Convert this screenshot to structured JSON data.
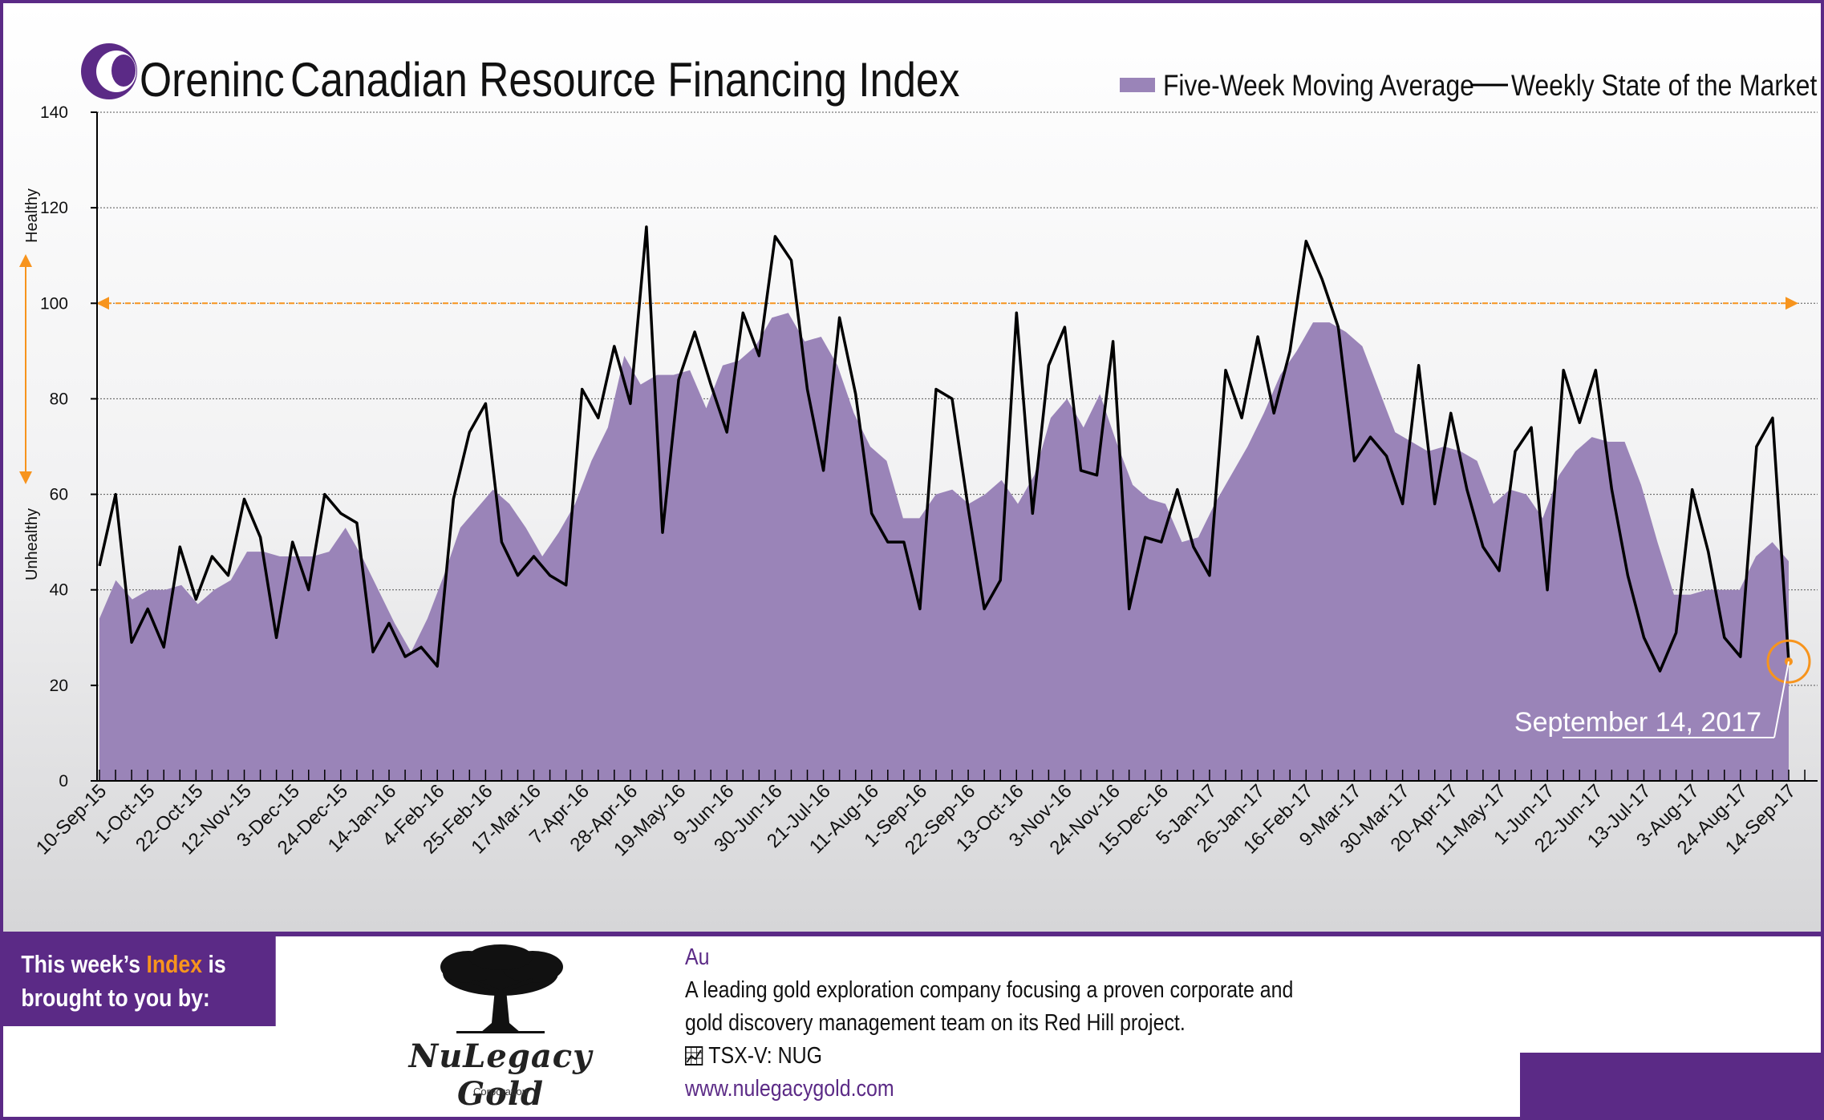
{
  "header": {
    "brand": "Oreninc",
    "title": "Canadian Resource Financing Index",
    "legend": {
      "area_label": "Five-Week Moving Average",
      "line_label": "Weekly State of the Market",
      "placement": "top-right"
    },
    "side_labels": {
      "top": "Healthy",
      "bottom": "Unhealthy"
    }
  },
  "colors": {
    "brand": "#5b2a86",
    "area_fill": "#9a84b8",
    "line": "#000000",
    "threshold": "#f7941d",
    "highlight": "#f7941d"
  },
  "chart_data": {
    "type": "line",
    "title": "Canadian Resource Financing Index",
    "xlabel": "",
    "ylabel": "",
    "ylim": [
      0,
      140
    ],
    "yticks": [
      0,
      20,
      40,
      60,
      80,
      100,
      120,
      140
    ],
    "grid": true,
    "legend_position": "top-right",
    "x_tick_labels": [
      "10-Sep-15",
      "1-Oct-15",
      "22-Oct-15",
      "12-Nov-15",
      "3-Dec-15",
      "24-Dec-15",
      "14-Jan-16",
      "4-Feb-16",
      "25-Feb-16",
      "17-Mar-16",
      "7-Apr-16",
      "28-Apr-16",
      "19-May-16",
      "9-Jun-16",
      "30-Jun-16",
      "21-Jul-16",
      "11-Aug-16",
      "1-Sep-16",
      "22-Sep-16",
      "13-Oct-16",
      "3-Nov-16",
      "24-Nov-16",
      "15-Dec-16",
      "5-Jan-17",
      "26-Jan-17",
      "16-Feb-17",
      "9-Mar-17",
      "30-Mar-17",
      "20-Apr-17",
      "11-May-17",
      "1-Jun-17",
      "22-Jun-17",
      "13-Jul-17",
      "3-Aug-17",
      "24-Aug-17",
      "14-Sep-17"
    ],
    "threshold": 100,
    "series": [
      {
        "name": "Five-Week Moving Average",
        "kind": "area",
        "values": [
          34,
          42,
          38,
          40,
          40,
          41,
          37,
          40,
          42,
          48,
          48,
          47,
          47,
          47,
          48,
          53,
          47,
          40,
          33,
          27,
          34,
          43,
          53,
          57,
          61,
          58,
          53,
          47,
          52,
          58,
          67,
          74,
          89,
          83,
          85,
          85,
          86,
          78,
          87,
          88,
          91,
          97,
          98,
          92,
          93,
          87,
          77,
          70,
          67,
          55,
          55,
          60,
          61,
          58,
          60,
          63,
          58,
          64,
          76,
          80,
          74,
          81,
          71,
          62,
          59,
          58,
          50,
          51,
          58,
          64,
          70,
          77,
          85,
          90,
          96,
          96,
          94,
          91,
          82,
          73,
          71,
          69,
          70,
          69,
          67,
          58,
          61,
          60,
          55,
          64,
          69,
          72,
          71,
          71,
          62,
          50,
          39,
          39,
          40,
          40,
          40,
          47,
          50,
          46
        ]
      },
      {
        "name": "Weekly State of the Market",
        "kind": "line",
        "values": [
          45,
          60,
          29,
          36,
          28,
          49,
          38,
          47,
          43,
          59,
          51,
          30,
          50,
          40,
          60,
          56,
          54,
          27,
          33,
          26,
          28,
          24,
          59,
          73,
          79,
          50,
          43,
          47,
          43,
          41,
          82,
          76,
          91,
          79,
          116,
          52,
          84,
          94,
          83,
          73,
          98,
          89,
          114,
          109,
          82,
          65,
          97,
          81,
          56,
          50,
          50,
          36,
          82,
          80,
          57,
          36,
          42,
          98,
          56,
          87,
          95,
          65,
          64,
          92,
          36,
          51,
          50,
          61,
          49,
          43,
          86,
          76,
          93,
          77,
          90,
          113,
          105,
          95,
          67,
          72,
          68,
          58,
          87,
          58,
          77,
          61,
          49,
          44,
          69,
          74,
          40,
          86,
          75,
          86,
          61,
          43,
          30,
          23,
          31,
          61,
          48,
          30,
          26,
          70,
          76,
          25
        ]
      }
    ],
    "annotation": {
      "label": "September 14, 2017",
      "value": 25
    }
  },
  "sponsor": {
    "line1_pre": "This week’s ",
    "line1_highlight": "Index",
    "line1_post": " is",
    "line2": "brought to you by:",
    "logo_name": "NuLegacy Gold",
    "logo_sub": "Corporation",
    "symbol": "Au",
    "description_1": "A leading gold exploration company focusing a proven corporate and",
    "description_2": "gold discovery management team on its Red Hill project.",
    "ticker": "TSX-V:  NUG",
    "ticker_icon": "chart-icon",
    "website": "www.nulegacygold.com"
  }
}
